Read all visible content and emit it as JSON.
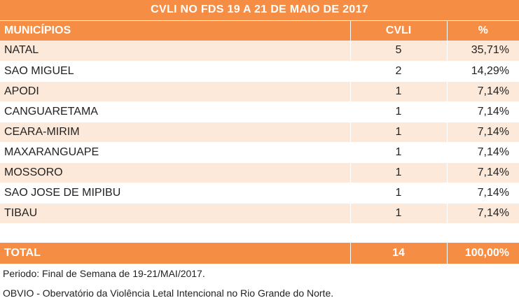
{
  "title": "CVLI NO FDS 19 A 21 DE MAIO DE 2017",
  "headers": {
    "municipios": "MUNICÍPIOS",
    "cvli": "CVLI",
    "pct": "%"
  },
  "rows": [
    {
      "municipio": "NATAL",
      "cvli": "5",
      "pct": "35,71%"
    },
    {
      "municipio": "SAO MIGUEL",
      "cvli": "2",
      "pct": "14,29%"
    },
    {
      "municipio": "APODI",
      "cvli": "1",
      "pct": "7,14%"
    },
    {
      "municipio": "CANGUARETAMA",
      "cvli": "1",
      "pct": "7,14%"
    },
    {
      "municipio": "CEARA-MIRIM",
      "cvli": "1",
      "pct": "7,14%"
    },
    {
      "municipio": "MAXARANGUAPE",
      "cvli": "1",
      "pct": "7,14%"
    },
    {
      "municipio": "MOSSORO",
      "cvli": "1",
      "pct": "7,14%"
    },
    {
      "municipio": "SAO JOSE DE MIPIBU",
      "cvli": "1",
      "pct": "7,14%"
    },
    {
      "municipio": "TIBAU",
      "cvli": "1",
      "pct": "7,14%"
    }
  ],
  "total": {
    "label": "TOTAL",
    "cvli": "14",
    "pct": "100,00%"
  },
  "notes": {
    "periodo": "Periodo: Final de Semana de 19-21/MAI/2017.",
    "fonte": "OBVIO - Obervatório da Violência Letal Intencional no Rio Grande do Norte."
  },
  "colors": {
    "accent": "#f58d45",
    "stripe": "#fde9d9"
  }
}
